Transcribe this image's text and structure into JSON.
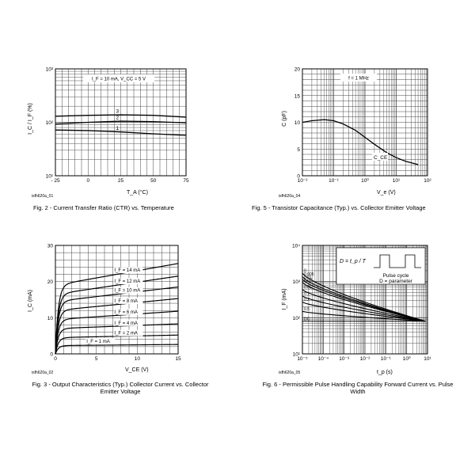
{
  "chart_data": [
    {
      "type": "line",
      "caption": "Fig. 2 - Current Transfer Ratio (CTR) vs. Temperature",
      "id_label": "isfh620a_01",
      "condition": "I_F = 10 mA, V_CC = 5 V",
      "xlabel": "T_A (°C)",
      "ylabel": "I_C / I_F (%)",
      "x_scale": "linear",
      "y_scale": "log",
      "xlim": [
        -25,
        75
      ],
      "ylim": [
        10,
        1000
      ],
      "x_ticks": [
        -25,
        0,
        25,
        50,
        75
      ],
      "x_tick_labels": [
        "- 25",
        "0",
        "25",
        "50",
        "75"
      ],
      "y_ticks": [
        10,
        100,
        1000
      ],
      "y_tick_labels": [
        "10¹",
        "10²",
        "10³"
      ],
      "grid": true,
      "series": [
        {
          "name": "3",
          "x": [
            -25,
            0,
            25,
            50,
            75
          ],
          "y": [
            130,
            135,
            138,
            135,
            125
          ]
        },
        {
          "name": "2",
          "x": [
            -25,
            0,
            25,
            50,
            75
          ],
          "y": [
            93,
            100,
            105,
            103,
            98
          ]
        },
        {
          "name": "1",
          "x": [
            -25,
            0,
            25,
            50,
            75
          ],
          "y": [
            72,
            70,
            66,
            61,
            57
          ]
        }
      ]
    },
    {
      "type": "line",
      "caption": "Fig. 5 - Transistor Capacitance (Typ.) vs. Collector Emitter Voltage",
      "id_label": "isfh620a_04",
      "condition": "f = 1 MHz",
      "xlabel": "V_e (V)",
      "ylabel": "C (pF)",
      "x_scale": "log",
      "y_scale": "linear",
      "xlim": [
        0.01,
        100
      ],
      "ylim": [
        0,
        20
      ],
      "x_ticks": [
        0.01,
        0.1,
        1,
        10,
        100
      ],
      "x_tick_labels": [
        "10⁻²",
        "10⁻¹",
        "10⁰",
        "10¹",
        "10²"
      ],
      "y_ticks": [
        0,
        5,
        10,
        15,
        20
      ],
      "y_tick_labels": [
        "0",
        "5",
        "10",
        "15",
        "20"
      ],
      "grid": true,
      "series": [
        {
          "name": "C_CE",
          "x": [
            0.01,
            0.02,
            0.05,
            0.1,
            0.2,
            0.5,
            1,
            2,
            5,
            10,
            20,
            50
          ],
          "y": [
            10,
            10.3,
            10.5,
            10.3,
            9.7,
            8.5,
            7.2,
            5.9,
            4.3,
            3.4,
            2.7,
            2.1
          ]
        }
      ]
    },
    {
      "type": "line",
      "caption": "Fig. 3 - Output Characteristics (Typ.) Collector Current vs. Collector Emitter Voltage",
      "id_label": "isfh620a_02",
      "xlabel": "V_CE (V)",
      "ylabel": "I_C (mA)",
      "x_scale": "linear",
      "y_scale": "linear",
      "xlim": [
        0,
        15
      ],
      "ylim": [
        0,
        30
      ],
      "x_ticks": [
        0,
        5,
        10,
        15
      ],
      "x_tick_labels": [
        "0",
        "5",
        "10",
        "15"
      ],
      "y_ticks": [
        0,
        10,
        20,
        30
      ],
      "y_tick_labels": [
        "0",
        "10",
        "20",
        "30"
      ],
      "grid": true,
      "series": [
        {
          "name": "I_F = 14 mA",
          "sat": 19,
          "end": 25
        },
        {
          "name": "I_F = 12 mA",
          "sat": 16.5,
          "end": 21.5
        },
        {
          "name": "I_F = 10 mA",
          "sat": 14.5,
          "end": 18.5
        },
        {
          "name": "I_F = 8 mA",
          "sat": 12,
          "end": 15.3
        },
        {
          "name": "I_F = 6 mA",
          "sat": 9.5,
          "end": 11.8
        },
        {
          "name": "I_F = 4 mA",
          "sat": 7,
          "end": 8.3
        },
        {
          "name": "I_F = 2 mA",
          "sat": 4.5,
          "end": 5.2
        },
        {
          "name": "I_F = 1 mA",
          "sat": 2.3,
          "end": 2.6
        }
      ]
    },
    {
      "type": "line",
      "caption": "Fig. 6 - Permissible Pulse Handling Capability Forward Current vs. Pulse Width",
      "id_label": "isfh620a_05",
      "xlabel": "t_p (s)",
      "ylabel": "I_F (mA)",
      "x_scale": "log",
      "y_scale": "log",
      "xlim": [
        1e-05,
        10
      ],
      "ylim": [
        10,
        10000
      ],
      "x_ticks": [
        1e-05,
        0.0001,
        0.001,
        0.01,
        0.1,
        1,
        10
      ],
      "x_tick_labels": [
        "10⁻⁵",
        "10⁻⁴",
        "10⁻³",
        "10⁻²",
        "10⁻¹",
        "10⁰",
        "10¹"
      ],
      "y_ticks": [
        10,
        100,
        1000,
        10000
      ],
      "y_tick_labels": [
        "10¹",
        "10²",
        "10³",
        "10⁴"
      ],
      "grid": true,
      "legend": {
        "formula": "D = t_p / T",
        "pulse_label": "Pulse cycle",
        "param_label": "D = parameter"
      },
      "series": [
        {
          "name": "0",
          "y_start": 1700
        },
        {
          "name": "0.005",
          "y_start": 1350
        },
        {
          "name": "0.01",
          "y_start": 1150
        },
        {
          "name": "0.02",
          "y_start": 950
        },
        {
          "name": "0.05",
          "y_start": 600
        },
        {
          "name": "0.1",
          "y_start": 400
        },
        {
          "name": "0.2",
          "y_start": 270
        },
        {
          "name": "0.5",
          "y_start": 150
        },
        {
          "name": "DC",
          "y_start": 80
        }
      ],
      "converge_y": 80
    }
  ]
}
